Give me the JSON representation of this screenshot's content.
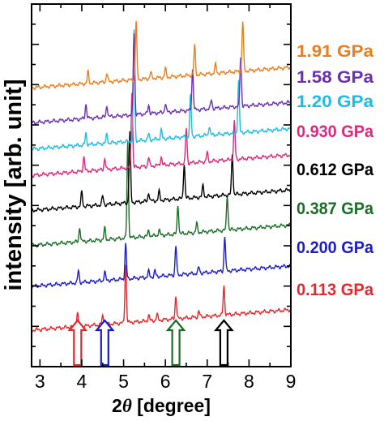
{
  "chart_data": {
    "type": "line",
    "title": "",
    "xlabel_prefix": "2",
    "xlabel_symbol": "θ",
    "xlabel_suffix": " [degree]",
    "ylabel": "intensity [arb. unit]",
    "xlim": [
      2.8,
      9.0
    ],
    "xticks": [
      "3",
      "4",
      "5",
      "6",
      "7",
      "8",
      "9"
    ],
    "grid": false,
    "legend": "right, labels aligned with each curve",
    "series": [
      {
        "name": "0.113 GPa",
        "color": "#e8262b",
        "baseline": 0.0,
        "tilt": 0.07,
        "peaks": [
          [
            3.9,
            0.05
          ],
          [
            4.5,
            0.03
          ],
          [
            5.05,
            0.2
          ],
          [
            5.6,
            0.02
          ],
          [
            5.8,
            0.02
          ],
          [
            6.25,
            0.08
          ],
          [
            6.8,
            0.02
          ],
          [
            7.4,
            0.1
          ]
        ]
      },
      {
        "name": "0.200 GPa",
        "color": "#1c1ccf",
        "baseline": 0.15,
        "tilt": 0.07,
        "peaks": [
          [
            3.92,
            0.04
          ],
          [
            4.55,
            0.03
          ],
          [
            5.05,
            0.12
          ],
          [
            5.6,
            0.02
          ],
          [
            5.75,
            0.02
          ],
          [
            6.25,
            0.1
          ],
          [
            6.8,
            0.02
          ],
          [
            7.42,
            0.12
          ]
        ]
      },
      {
        "name": "0.387 GPa",
        "color": "#1a6e26",
        "baseline": 0.29,
        "tilt": 0.07,
        "peaks": [
          [
            3.95,
            0.05
          ],
          [
            4.55,
            0.04
          ],
          [
            5.1,
            0.33
          ],
          [
            5.6,
            0.02
          ],
          [
            5.85,
            0.02
          ],
          [
            6.3,
            0.1
          ],
          [
            6.75,
            0.03
          ],
          [
            7.48,
            0.12
          ]
        ]
      },
      {
        "name": "0.612 GPa",
        "color": "#000000",
        "baseline": 0.41,
        "tilt": 0.07,
        "peaks": [
          [
            4.0,
            0.05
          ],
          [
            4.5,
            0.03
          ],
          [
            5.15,
            0.24
          ],
          [
            5.6,
            0.03
          ],
          [
            5.85,
            0.03
          ],
          [
            6.45,
            0.12
          ],
          [
            6.9,
            0.04
          ],
          [
            7.6,
            0.14
          ]
        ]
      },
      {
        "name": "0.930 GPa",
        "color": "#e0287b",
        "baseline": 0.53,
        "tilt": 0.07,
        "peaks": [
          [
            4.05,
            0.05
          ],
          [
            4.55,
            0.04
          ],
          [
            5.2,
            0.26
          ],
          [
            5.6,
            0.03
          ],
          [
            5.9,
            0.03
          ],
          [
            6.5,
            0.12
          ],
          [
            7.0,
            0.03
          ],
          [
            7.65,
            0.13
          ]
        ]
      },
      {
        "name": "1.20 GPa",
        "color": "#19bde6",
        "baseline": 0.62,
        "tilt": 0.07,
        "peaks": [
          [
            4.1,
            0.04
          ],
          [
            4.6,
            0.03
          ],
          [
            5.25,
            0.38
          ],
          [
            5.6,
            0.02
          ],
          [
            5.9,
            0.03
          ],
          [
            6.6,
            0.14
          ],
          [
            7.05,
            0.03
          ],
          [
            7.75,
            0.18
          ]
        ]
      },
      {
        "name": "1.58 GPa",
        "color": "#6a2fb5",
        "baseline": 0.71,
        "tilt": 0.07,
        "peaks": [
          [
            4.1,
            0.05
          ],
          [
            4.6,
            0.04
          ],
          [
            5.25,
            0.28
          ],
          [
            5.6,
            0.03
          ],
          [
            6.0,
            0.03
          ],
          [
            6.65,
            0.14
          ],
          [
            7.1,
            0.03
          ],
          [
            7.8,
            0.17
          ]
        ]
      },
      {
        "name": "1.91 GPa",
        "color": "#ef7d1a",
        "baseline": 0.83,
        "tilt": 0.07,
        "peaks": [
          [
            4.15,
            0.04
          ],
          [
            4.6,
            0.03
          ],
          [
            5.3,
            0.2
          ],
          [
            5.65,
            0.02
          ],
          [
            6.0,
            0.03
          ],
          [
            6.7,
            0.1
          ],
          [
            7.2,
            0.03
          ],
          [
            7.85,
            0.17
          ]
        ]
      }
    ],
    "arrows": [
      {
        "x": 3.9,
        "color": "#e8262b"
      },
      {
        "x": 4.55,
        "color": "#1c1ccf"
      },
      {
        "x": 6.25,
        "color": "#1a6e26"
      },
      {
        "x": 7.4,
        "color": "#000000"
      }
    ]
  }
}
